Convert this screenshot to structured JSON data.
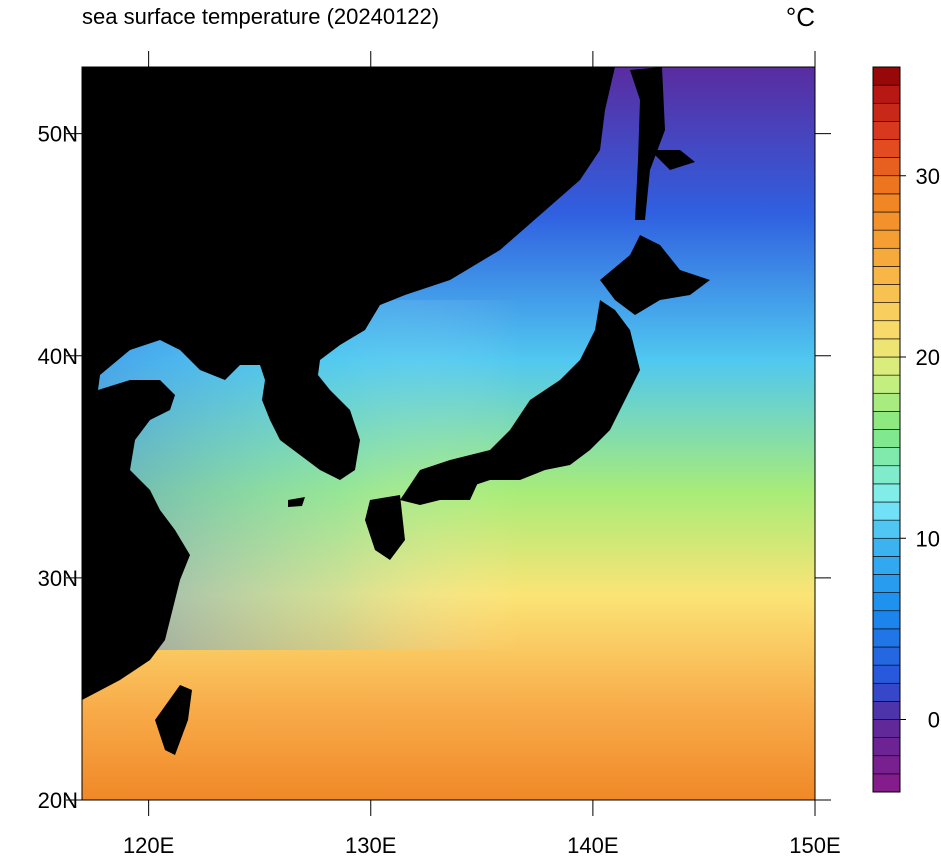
{
  "map": {
    "title": "sea surface temperature (20240122)",
    "unit_label": "°C",
    "xlim": [
      117,
      150
    ],
    "xticks": [
      {
        "value": 120,
        "label": "120E"
      },
      {
        "value": 130,
        "label": "130E"
      },
      {
        "value": 140,
        "label": "140E"
      },
      {
        "value": 150,
        "label": "150E"
      }
    ],
    "ylim": [
      20,
      53
    ],
    "yticks": [
      {
        "value": 20,
        "label": "20N"
      },
      {
        "value": 30,
        "label": "30N"
      },
      {
        "value": 40,
        "label": "40N"
      },
      {
        "value": 50,
        "label": "50N"
      }
    ]
  },
  "colorbar": {
    "lim": [
      -4,
      36
    ],
    "step": 1,
    "ticks": [
      0,
      10,
      20,
      30
    ],
    "stops": [
      [
        -4,
        "#8a1a8a"
      ],
      [
        0,
        "#5a2a9a"
      ],
      [
        2,
        "#2a50d8"
      ],
      [
        6,
        "#1a8cf0"
      ],
      [
        10,
        "#40b8f0"
      ],
      [
        12,
        "#80eef8"
      ],
      [
        16,
        "#80e880"
      ],
      [
        19,
        "#d0f080"
      ],
      [
        21,
        "#f8e070"
      ],
      [
        25,
        "#f8b040"
      ],
      [
        29,
        "#f08020"
      ],
      [
        32,
        "#e04020"
      ],
      [
        35,
        "#b01010"
      ],
      [
        36,
        "#800000"
      ]
    ]
  }
}
